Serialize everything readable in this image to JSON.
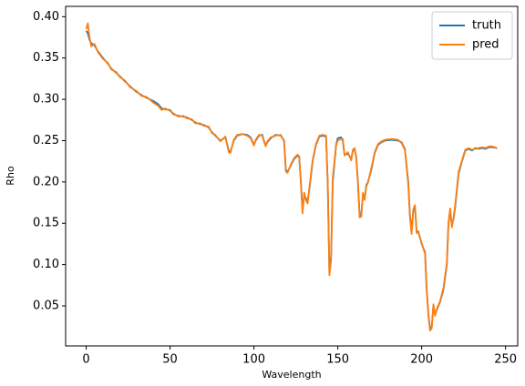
{
  "chart_data": {
    "type": "line",
    "xlabel": "Wavelength",
    "ylabel": "Rho",
    "x": [
      0,
      1,
      2,
      3,
      5,
      7,
      10,
      13,
      15,
      18,
      20,
      23,
      26,
      30,
      33,
      36,
      40,
      43,
      45,
      47,
      50,
      52,
      55,
      58,
      60,
      63,
      65,
      68,
      70,
      73,
      75,
      77,
      80,
      83,
      85,
      86,
      88,
      90,
      93,
      96,
      98,
      100,
      101,
      103,
      105,
      106,
      107,
      108,
      110,
      113,
      116,
      118,
      119,
      120,
      122,
      124,
      126,
      127,
      128,
      129,
      130,
      131,
      132,
      133,
      135,
      137,
      139,
      141,
      143,
      144,
      145,
      146,
      147,
      149,
      150,
      152,
      153,
      154,
      156,
      158,
      159,
      160,
      161,
      162,
      163,
      164,
      165,
      166,
      167,
      168,
      170,
      172,
      174,
      176,
      178,
      182,
      186,
      188,
      190,
      192,
      193,
      194,
      195,
      196,
      197,
      198,
      200,
      202,
      203,
      204,
      205,
      206,
      207,
      208,
      209,
      211,
      213,
      215,
      216,
      217,
      218,
      219,
      220,
      222,
      224,
      226,
      228,
      230,
      232,
      234,
      236,
      238,
      240,
      242,
      245
    ],
    "series": [
      {
        "name": "truth",
        "color": "#1f77b4",
        "values": [
          0.383,
          0.38,
          0.372,
          0.368,
          0.365,
          0.358,
          0.35,
          0.343,
          0.337,
          0.332,
          0.328,
          0.322,
          0.316,
          0.309,
          0.305,
          0.302,
          0.298,
          0.294,
          0.289,
          0.288,
          0.287,
          0.282,
          0.28,
          0.279,
          0.278,
          0.275,
          0.272,
          0.27,
          0.269,
          0.266,
          0.26,
          0.256,
          0.25,
          0.254,
          0.238,
          0.236,
          0.25,
          0.256,
          0.258,
          0.257,
          0.254,
          0.245,
          0.25,
          0.256,
          0.257,
          0.25,
          0.244,
          0.248,
          0.253,
          0.257,
          0.256,
          0.25,
          0.215,
          0.212,
          0.22,
          0.228,
          0.232,
          0.23,
          0.2,
          0.165,
          0.185,
          0.18,
          0.176,
          0.19,
          0.225,
          0.245,
          0.255,
          0.256,
          0.255,
          0.2,
          0.09,
          0.11,
          0.2,
          0.245,
          0.253,
          0.254,
          0.25,
          0.233,
          0.234,
          0.228,
          0.238,
          0.24,
          0.23,
          0.2,
          0.16,
          0.16,
          0.185,
          0.18,
          0.195,
          0.2,
          0.215,
          0.235,
          0.245,
          0.248,
          0.25,
          0.251,
          0.25,
          0.248,
          0.24,
          0.2,
          0.16,
          0.14,
          0.165,
          0.17,
          0.14,
          0.14,
          0.125,
          0.115,
          0.07,
          0.04,
          0.022,
          0.025,
          0.05,
          0.04,
          0.045,
          0.055,
          0.07,
          0.1,
          0.15,
          0.165,
          0.148,
          0.155,
          0.17,
          0.21,
          0.225,
          0.238,
          0.24,
          0.238,
          0.241,
          0.24,
          0.241,
          0.24,
          0.242,
          0.242,
          0.241
        ]
      },
      {
        "name": "pred",
        "color": "#ff7f0e",
        "values": [
          0.385,
          0.392,
          0.375,
          0.364,
          0.367,
          0.357,
          0.349,
          0.344,
          0.336,
          0.333,
          0.327,
          0.323,
          0.315,
          0.31,
          0.304,
          0.303,
          0.296,
          0.292,
          0.287,
          0.289,
          0.286,
          0.283,
          0.279,
          0.28,
          0.277,
          0.276,
          0.271,
          0.271,
          0.268,
          0.267,
          0.259,
          0.257,
          0.249,
          0.255,
          0.236,
          0.235,
          0.251,
          0.257,
          0.258,
          0.256,
          0.253,
          0.244,
          0.251,
          0.257,
          0.256,
          0.249,
          0.243,
          0.249,
          0.254,
          0.256,
          0.257,
          0.249,
          0.213,
          0.211,
          0.221,
          0.229,
          0.233,
          0.231,
          0.198,
          0.162,
          0.187,
          0.178,
          0.174,
          0.192,
          0.226,
          0.246,
          0.256,
          0.257,
          0.256,
          0.195,
          0.087,
          0.105,
          0.205,
          0.244,
          0.25,
          0.252,
          0.252,
          0.232,
          0.236,
          0.226,
          0.239,
          0.241,
          0.229,
          0.198,
          0.157,
          0.158,
          0.187,
          0.178,
          0.197,
          0.199,
          0.217,
          0.236,
          0.246,
          0.249,
          0.251,
          0.252,
          0.251,
          0.247,
          0.239,
          0.197,
          0.158,
          0.137,
          0.167,
          0.172,
          0.138,
          0.139,
          0.126,
          0.113,
          0.068,
          0.038,
          0.02,
          0.023,
          0.052,
          0.038,
          0.046,
          0.056,
          0.072,
          0.102,
          0.152,
          0.168,
          0.145,
          0.157,
          0.172,
          0.212,
          0.226,
          0.239,
          0.241,
          0.239,
          0.24,
          0.241,
          0.242,
          0.241,
          0.243,
          0.243,
          0.241
        ]
      }
    ],
    "xlim": [
      -12.25,
      257.25
    ],
    "ylim": [
      0.0015,
      0.4125
    ],
    "xticks": [
      0,
      50,
      100,
      150,
      200,
      250
    ],
    "yticks": [
      0.05,
      {
        "value": 0.1,
        "label": "0.10"
      },
      0.15,
      {
        "value": 0.2,
        "label": "0.20"
      },
      0.25,
      {
        "value": 0.3,
        "label": "0.30"
      },
      0.35,
      {
        "value": 0.4,
        "label": "0.40"
      }
    ],
    "legend": "upper right"
  }
}
